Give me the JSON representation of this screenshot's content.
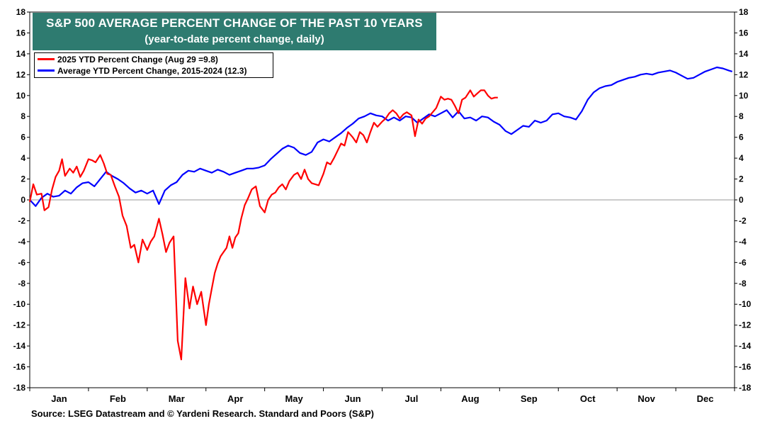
{
  "chart_data": {
    "type": "line",
    "title": "S&P 500 AVERAGE PERCENT CHANGE OF THE PAST 10 YEARS",
    "subtitle": "(year-to-date percent change, daily)",
    "source": "Source: LSEG Datastream and © Yardeni Research. Standard and Poors (S&P)",
    "ylim": [
      -18,
      18
    ],
    "y_ticks": [
      "18",
      "16",
      "14",
      "12",
      "10",
      "8",
      "6",
      "4",
      "2",
      "0",
      "-2",
      "-4",
      "-6",
      "-8",
      "-10",
      "-12",
      "-14",
      "-16",
      "-18"
    ],
    "x_domain": [
      0,
      12
    ],
    "categories": [
      "Jan",
      "Feb",
      "Mar",
      "Apr",
      "May",
      "Jun",
      "Jul",
      "Aug",
      "Sep",
      "Oct",
      "Nov",
      "Dec"
    ],
    "zero_line": true,
    "grid": false,
    "legend_position": "top-left",
    "series": [
      {
        "name": "2025 YTD Percent Change (Aug 29 =9.8)",
        "color": "#ff0000",
        "x": [
          0.0,
          0.06,
          0.12,
          0.2,
          0.25,
          0.32,
          0.38,
          0.44,
          0.5,
          0.55,
          0.6,
          0.68,
          0.74,
          0.8,
          0.86,
          0.92,
          1.0,
          1.06,
          1.12,
          1.2,
          1.26,
          1.32,
          1.38,
          1.45,
          1.52,
          1.58,
          1.65,
          1.72,
          1.78,
          1.85,
          1.92,
          2.0,
          2.06,
          2.12,
          2.2,
          2.26,
          2.32,
          2.38,
          2.45,
          2.52,
          2.58,
          2.65,
          2.72,
          2.78,
          2.85,
          2.92,
          3.0,
          3.05,
          3.1,
          3.15,
          3.2,
          3.25,
          3.3,
          3.35,
          3.4,
          3.45,
          3.5,
          3.55,
          3.6,
          3.66,
          3.72,
          3.78,
          3.85,
          3.92,
          4.0,
          4.06,
          4.12,
          4.18,
          4.24,
          4.3,
          4.36,
          4.42,
          4.5,
          4.56,
          4.62,
          4.68,
          4.74,
          4.8,
          4.86,
          4.92,
          5.0,
          5.06,
          5.12,
          5.18,
          5.24,
          5.3,
          5.36,
          5.42,
          5.5,
          5.56,
          5.62,
          5.68,
          5.74,
          5.8,
          5.86,
          5.92,
          6.0,
          6.06,
          6.12,
          6.18,
          6.24,
          6.3,
          6.36,
          6.42,
          6.5,
          6.56,
          6.62,
          6.68,
          6.74,
          6.8,
          6.86,
          6.92,
          7.0,
          7.06,
          7.12,
          7.18,
          7.24,
          7.3,
          7.36,
          7.42,
          7.5,
          7.56,
          7.62,
          7.68,
          7.74,
          7.8,
          7.86,
          7.92,
          7.97
        ],
        "values": [
          -0.2,
          1.5,
          0.5,
          0.6,
          -1.0,
          -0.7,
          1.0,
          2.2,
          2.8,
          3.9,
          2.3,
          3.0,
          2.6,
          3.2,
          2.2,
          2.8,
          3.9,
          3.8,
          3.6,
          4.3,
          3.5,
          2.5,
          2.4,
          1.3,
          0.3,
          -1.5,
          -2.5,
          -4.6,
          -4.3,
          -6.0,
          -3.8,
          -4.8,
          -4.0,
          -3.5,
          -1.8,
          -3.3,
          -5.0,
          -4.1,
          -3.5,
          -13.5,
          -15.3,
          -7.5,
          -10.4,
          -8.3,
          -10.0,
          -8.8,
          -12.0,
          -10.0,
          -8.5,
          -7.0,
          -6.1,
          -5.4,
          -5.0,
          -4.6,
          -3.5,
          -4.6,
          -3.6,
          -3.2,
          -1.8,
          -0.5,
          0.2,
          1.0,
          1.3,
          -0.6,
          -1.2,
          0.0,
          0.5,
          0.7,
          1.2,
          1.5,
          1.0,
          1.8,
          2.4,
          2.6,
          2.0,
          2.9,
          2.0,
          1.6,
          1.5,
          1.4,
          2.5,
          3.6,
          3.4,
          4.0,
          4.7,
          5.4,
          5.2,
          6.5,
          6.0,
          5.5,
          6.5,
          6.2,
          5.5,
          6.5,
          7.4,
          7.0,
          7.5,
          7.8,
          8.3,
          8.6,
          8.3,
          7.8,
          8.2,
          8.4,
          8.1,
          6.1,
          7.7,
          7.3,
          7.8,
          8.0,
          8.4,
          8.8,
          9.9,
          9.6,
          9.7,
          9.6,
          9.0,
          8.3,
          9.6,
          9.8,
          10.5,
          9.9,
          10.2,
          10.5,
          10.5,
          10.0,
          9.7,
          9.8,
          9.8
        ]
      },
      {
        "name": "Average YTD Percent Change, 2015-2024 (12.3)",
        "color": "#0000ff",
        "x": [
          0.0,
          0.1,
          0.2,
          0.3,
          0.4,
          0.5,
          0.6,
          0.7,
          0.8,
          0.9,
          1.0,
          1.1,
          1.2,
          1.3,
          1.4,
          1.5,
          1.6,
          1.7,
          1.8,
          1.9,
          2.0,
          2.1,
          2.2,
          2.3,
          2.4,
          2.5,
          2.6,
          2.7,
          2.8,
          2.9,
          3.0,
          3.1,
          3.2,
          3.3,
          3.4,
          3.5,
          3.6,
          3.7,
          3.8,
          3.9,
          4.0,
          4.1,
          4.2,
          4.3,
          4.4,
          4.5,
          4.6,
          4.7,
          4.8,
          4.9,
          5.0,
          5.1,
          5.2,
          5.3,
          5.4,
          5.5,
          5.6,
          5.7,
          5.8,
          5.9,
          6.0,
          6.1,
          6.2,
          6.3,
          6.4,
          6.5,
          6.6,
          6.7,
          6.8,
          6.9,
          7.0,
          7.1,
          7.2,
          7.3,
          7.4,
          7.5,
          7.6,
          7.7,
          7.8,
          7.9,
          8.0,
          8.1,
          8.2,
          8.3,
          8.4,
          8.5,
          8.6,
          8.7,
          8.8,
          8.9,
          9.0,
          9.1,
          9.2,
          9.3,
          9.4,
          9.5,
          9.6,
          9.7,
          9.8,
          9.9,
          10.0,
          10.1,
          10.2,
          10.3,
          10.4,
          10.5,
          10.6,
          10.7,
          10.8,
          10.9,
          11.0,
          11.1,
          11.2,
          11.3,
          11.4,
          11.5,
          11.6,
          11.7,
          11.8,
          11.9,
          11.96
        ],
        "values": [
          0.0,
          -0.6,
          0.2,
          0.6,
          0.3,
          0.4,
          0.9,
          0.6,
          1.2,
          1.6,
          1.7,
          1.3,
          2.0,
          2.7,
          2.3,
          2.0,
          1.6,
          1.1,
          0.7,
          0.9,
          0.6,
          0.9,
          -0.4,
          0.9,
          1.4,
          1.7,
          2.4,
          2.8,
          2.7,
          3.0,
          2.8,
          2.6,
          2.9,
          2.7,
          2.4,
          2.6,
          2.8,
          3.0,
          3.0,
          3.1,
          3.3,
          3.9,
          4.4,
          4.9,
          5.2,
          5.0,
          4.5,
          4.3,
          4.6,
          5.5,
          5.8,
          5.6,
          6.0,
          6.4,
          6.9,
          7.3,
          7.8,
          8.0,
          8.3,
          8.1,
          8.0,
          7.6,
          7.9,
          7.6,
          8.0,
          7.9,
          7.4,
          7.8,
          8.2,
          8.0,
          8.3,
          8.6,
          7.9,
          8.5,
          7.8,
          7.9,
          7.6,
          8.0,
          7.9,
          7.5,
          7.2,
          6.6,
          6.3,
          6.7,
          7.1,
          7.0,
          7.6,
          7.4,
          7.6,
          8.2,
          8.3,
          8.0,
          7.9,
          7.7,
          8.5,
          9.6,
          10.3,
          10.7,
          10.9,
          11.0,
          11.3,
          11.5,
          11.7,
          11.8,
          12.0,
          12.1,
          12.0,
          12.2,
          12.3,
          12.4,
          12.2,
          11.9,
          11.6,
          11.7,
          12.0,
          12.3,
          12.5,
          12.7,
          12.6,
          12.4,
          12.3
        ]
      }
    ]
  }
}
